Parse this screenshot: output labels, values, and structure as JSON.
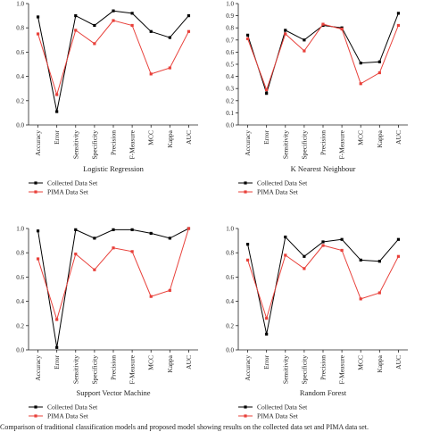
{
  "metrics": [
    "Accuracy",
    "Error",
    "Sensitivity",
    "Specificity",
    "Precision",
    "F-Measure",
    "MCC",
    "Kappa",
    "AUC"
  ],
  "legend": {
    "collected": "Collected Data Set",
    "pima": "PIMA Data Set"
  },
  "colors": {
    "collected": "#000000",
    "pima": "#e8403a",
    "axis": "#222222"
  },
  "caption": "Comparison of traditional classification models and proposed model showing results on the collected data set and PIMA data set.",
  "chart_data": [
    {
      "type": "line",
      "title": "Logistic Regression",
      "categories": [
        "Accuracy",
        "Error",
        "Sensitivity",
        "Specificity",
        "Precision",
        "F-Measure",
        "MCC",
        "Kappa",
        "AUC"
      ],
      "ylim": [
        0,
        1.0
      ],
      "yticks": [
        "0.0",
        "0.2",
        "0.4",
        "0.6",
        "0.8",
        "1.0"
      ],
      "grid": false,
      "legend_position": "below",
      "series": [
        {
          "name": "Collected Data Set",
          "values": [
            0.89,
            0.11,
            0.9,
            0.82,
            0.94,
            0.92,
            0.77,
            0.72,
            0.9
          ]
        },
        {
          "name": "PIMA Data Set",
          "values": [
            0.75,
            0.25,
            0.78,
            0.67,
            0.86,
            0.82,
            0.42,
            0.47,
            0.77
          ]
        }
      ]
    },
    {
      "type": "line",
      "title": "K Nearest Neighbour",
      "categories": [
        "Accuracy",
        "Error",
        "Sensitivity",
        "Specificity",
        "Precision",
        "F-Measure",
        "MCC",
        "Kappa",
        "AUC"
      ],
      "ylim": [
        0,
        1.0
      ],
      "yticks": [
        "0.0",
        "0.1",
        "0.2",
        "0.3",
        "0.4",
        "0.5",
        "0.6",
        "0.7",
        "0.8",
        "0.9",
        "1.0"
      ],
      "grid": false,
      "legend_position": "below",
      "series": [
        {
          "name": "Collected Data Set",
          "values": [
            0.74,
            0.26,
            0.78,
            0.7,
            0.82,
            0.8,
            0.51,
            0.52,
            0.92
          ]
        },
        {
          "name": "PIMA Data Set",
          "values": [
            0.71,
            0.29,
            0.75,
            0.61,
            0.83,
            0.79,
            0.34,
            0.43,
            0.82
          ]
        }
      ]
    },
    {
      "type": "line",
      "title": "Support Vector Machine",
      "categories": [
        "Accuracy",
        "Error",
        "Sensitivity",
        "Specificity",
        "Precision",
        "F-Measure",
        "MCC",
        "Kappa",
        "AUC"
      ],
      "ylim": [
        0,
        1.0
      ],
      "yticks": [
        "0.0",
        "0.2",
        "0.4",
        "0.6",
        "0.8",
        "1.0"
      ],
      "grid": false,
      "legend_position": "below",
      "series": [
        {
          "name": "Collected Data Set",
          "values": [
            0.98,
            0.02,
            0.99,
            0.92,
            0.99,
            0.99,
            0.96,
            0.92,
            1.0
          ]
        },
        {
          "name": "PIMA Data Set",
          "values": [
            0.75,
            0.25,
            0.79,
            0.66,
            0.84,
            0.81,
            0.44,
            0.49,
            1.0
          ]
        }
      ]
    },
    {
      "type": "line",
      "title": "Random Forest",
      "categories": [
        "Accuracy",
        "Error",
        "Sensitivity",
        "Specificity",
        "Precision",
        "F-Measure",
        "MCC",
        "Kappa",
        "AUC"
      ],
      "ylim": [
        0,
        1.0
      ],
      "yticks": [
        "0.0",
        "0.2",
        "0.4",
        "0.6",
        "0.8",
        "1.0"
      ],
      "grid": false,
      "legend_position": "below",
      "series": [
        {
          "name": "Collected Data Set",
          "values": [
            0.87,
            0.13,
            0.93,
            0.77,
            0.89,
            0.91,
            0.74,
            0.73,
            0.91
          ]
        },
        {
          "name": "PIMA Data Set",
          "values": [
            0.74,
            0.26,
            0.78,
            0.67,
            0.86,
            0.82,
            0.42,
            0.47,
            0.77
          ]
        }
      ]
    }
  ]
}
